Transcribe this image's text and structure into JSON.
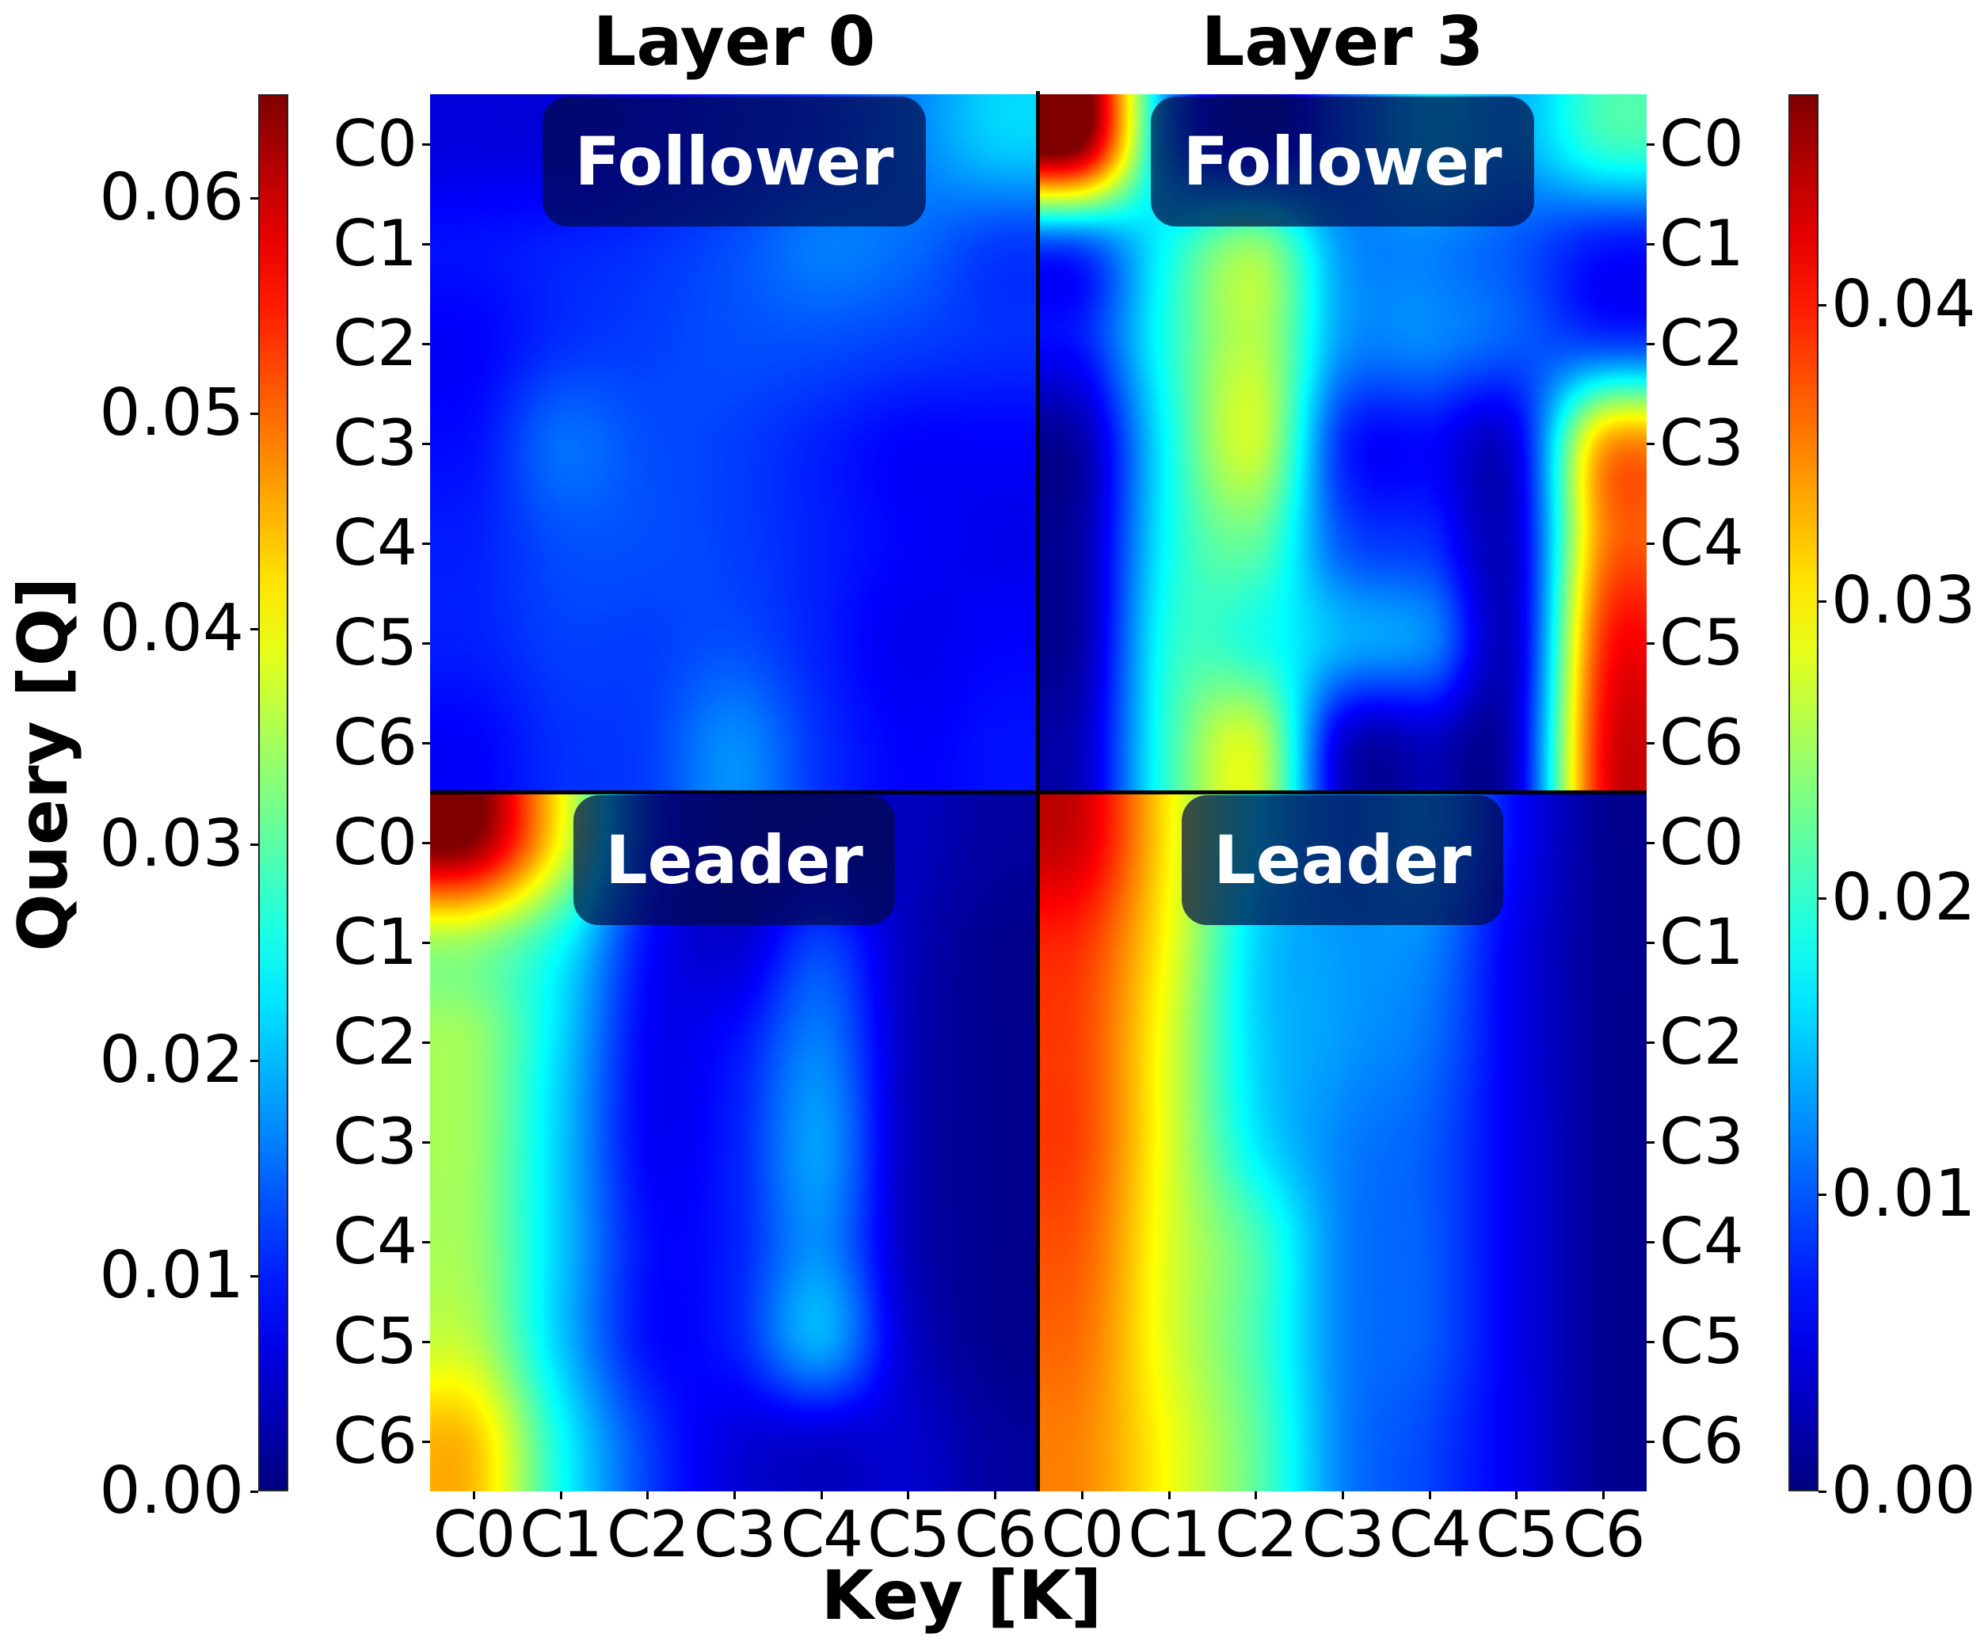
{
  "chart_data": {
    "type": "heatmap",
    "colormap": "jet",
    "xlabel": "Key [K]",
    "ylabel": "Query [Q]",
    "tick_labels": [
      "C0",
      "C1",
      "C2",
      "C3",
      "C4",
      "C5",
      "C6"
    ],
    "columns": [
      {
        "title": "Layer 0",
        "colorbar": {
          "side": "left",
          "vmin": 0.0,
          "vmax": 0.0648,
          "ticks": [
            0.0,
            0.01,
            0.02,
            0.03,
            0.04,
            0.05,
            0.06
          ],
          "tick_labels": [
            "0.00",
            "0.01",
            "0.02",
            "0.03",
            "0.04",
            "0.05",
            "0.06"
          ]
        },
        "panels": [
          {
            "label": "Follower",
            "values": [
              [
                0.006,
                0.006,
                0.008,
                0.01,
                0.012,
                0.016,
                0.021
              ],
              [
                0.009,
                0.01,
                0.011,
                0.013,
                0.016,
                0.015,
                0.012
              ],
              [
                0.008,
                0.011,
                0.012,
                0.013,
                0.013,
                0.012,
                0.011
              ],
              [
                0.009,
                0.015,
                0.013,
                0.012,
                0.01,
                0.008,
                0.008
              ],
              [
                0.01,
                0.013,
                0.013,
                0.012,
                0.01,
                0.008,
                0.007
              ],
              [
                0.01,
                0.012,
                0.012,
                0.013,
                0.01,
                0.007,
                0.008
              ],
              [
                0.008,
                0.011,
                0.012,
                0.017,
                0.011,
                0.008,
                0.009
              ]
            ]
          },
          {
            "label": "Leader",
            "values": [
              [
                0.064,
                0.04,
                0.012,
                0.004,
                0.004,
                0.004,
                0.002
              ],
              [
                0.034,
                0.025,
                0.009,
                0.005,
                0.012,
                0.004,
                0.001
              ],
              [
                0.034,
                0.022,
                0.008,
                0.009,
                0.016,
                0.004,
                0.001
              ],
              [
                0.034,
                0.021,
                0.008,
                0.01,
                0.018,
                0.004,
                0.001
              ],
              [
                0.034,
                0.021,
                0.009,
                0.01,
                0.017,
                0.004,
                0.001
              ],
              [
                0.036,
                0.021,
                0.009,
                0.01,
                0.019,
                0.005,
                0.001
              ],
              [
                0.044,
                0.025,
                0.012,
                0.006,
                0.005,
                0.005,
                0.002
              ]
            ]
          }
        ]
      },
      {
        "title": "Layer 3",
        "colorbar": {
          "side": "right",
          "vmin": 0.0,
          "vmax": 0.0471,
          "ticks": [
            0.0,
            0.01,
            0.02,
            0.03,
            0.04
          ],
          "tick_labels": [
            "0.00",
            "0.01",
            "0.02",
            "0.03",
            "0.04"
          ]
        },
        "panels": [
          {
            "label": "Follower",
            "values": [
              [
                0.047,
                0.013,
                0.004,
                0.01,
                0.016,
                0.014,
                0.02
              ],
              [
                0.01,
                0.018,
                0.024,
                0.013,
                0.012,
                0.01,
                0.007
              ],
              [
                0.007,
                0.019,
                0.026,
                0.013,
                0.012,
                0.01,
                0.009
              ],
              [
                0.002,
                0.018,
                0.027,
                0.008,
                0.006,
                0.005,
                0.033
              ],
              [
                0.002,
                0.018,
                0.022,
                0.01,
                0.008,
                0.004,
                0.035
              ],
              [
                0.002,
                0.019,
                0.019,
                0.014,
                0.012,
                0.004,
                0.039
              ],
              [
                0.003,
                0.02,
                0.027,
                0.004,
                0.003,
                0.004,
                0.041
              ]
            ]
          },
          {
            "label": "Leader",
            "values": [
              [
                0.043,
                0.03,
                0.018,
                0.012,
                0.014,
                0.006,
                0.001
              ],
              [
                0.039,
                0.029,
                0.016,
                0.013,
                0.012,
                0.005,
                0.001
              ],
              [
                0.038,
                0.028,
                0.016,
                0.013,
                0.011,
                0.005,
                0.001
              ],
              [
                0.038,
                0.028,
                0.017,
                0.012,
                0.01,
                0.005,
                0.001
              ],
              [
                0.037,
                0.028,
                0.021,
                0.012,
                0.01,
                0.005,
                0.001
              ],
              [
                0.036,
                0.028,
                0.021,
                0.012,
                0.01,
                0.005,
                0.001
              ],
              [
                0.035,
                0.029,
                0.022,
                0.012,
                0.009,
                0.005,
                0.001
              ]
            ]
          }
        ]
      }
    ],
    "grid": false,
    "interpolation": "bicubic"
  },
  "titles": {
    "layer0": "Layer 0",
    "layer3": "Layer 3"
  },
  "axes": {
    "xlabel": "Key [K]",
    "ylabel": "Query [Q]"
  },
  "tags": {
    "follower": "Follower",
    "leader": "Leader"
  }
}
